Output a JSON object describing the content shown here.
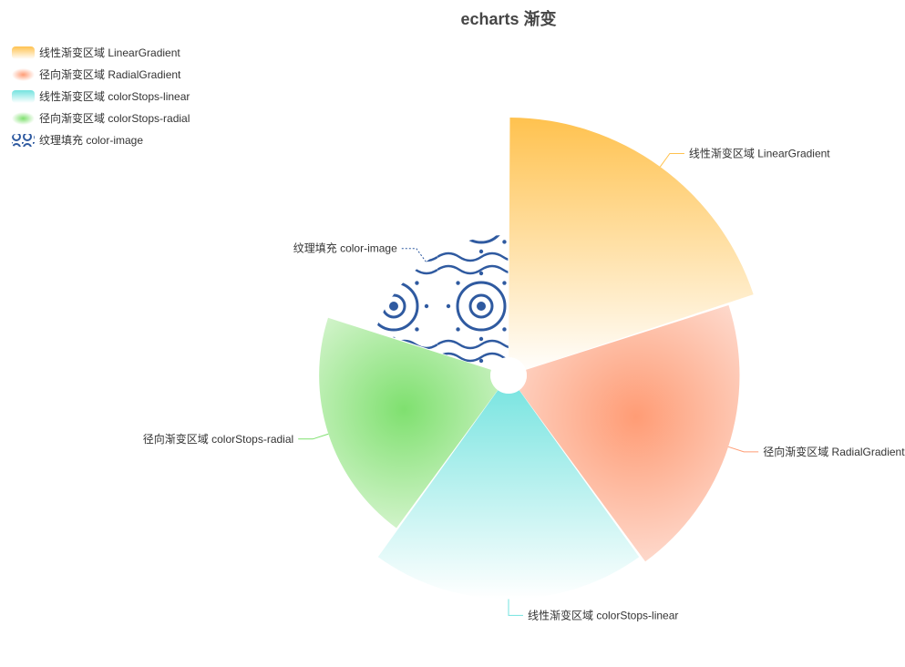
{
  "chart_data": {
    "type": "pie",
    "subtype": "rose",
    "title": "echarts 渐变",
    "legend_position": "top-left",
    "legend_orient": "vertical",
    "series": [
      {
        "name": "线性渐变区域 LinearGradient",
        "value": 98,
        "fill": "linear",
        "colors": [
          "#ffc24f",
          "#ffffff"
        ],
        "legend_icon": "linear-swatch"
      },
      {
        "name": "径向渐变区域 RadialGradient",
        "value": 87,
        "fill": "radial",
        "colors": [
          "#ff9c75",
          "#fde4dc"
        ],
        "legend_icon": "radial-swatch"
      },
      {
        "name": "线性渐变区域 colorStops-linear",
        "value": 84,
        "fill": "linear",
        "colors": [
          "#73e3df",
          "#ffffff"
        ],
        "legend_icon": "linear-swatch"
      },
      {
        "name": "径向渐变区域 colorStops-radial",
        "value": 70,
        "fill": "radial",
        "colors": [
          "#7fe06f",
          "#e1f7db"
        ],
        "legend_icon": "radial-swatch"
      },
      {
        "name": "纹理填充 color-image",
        "value": 50,
        "fill": "pattern",
        "colors": [
          "#2f5aa0"
        ],
        "legend_icon": "pattern-swatch"
      }
    ]
  }
}
